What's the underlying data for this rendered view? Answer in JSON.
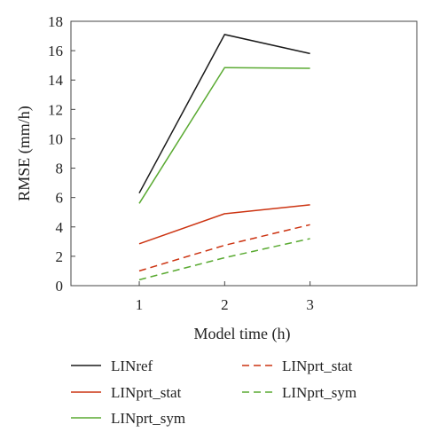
{
  "chart_data": {
    "type": "line",
    "title": "",
    "xlabel": "Model time (h)",
    "ylabel": "RMSE (mm/h)",
    "x": [
      1,
      2,
      3
    ],
    "xlim": [
      0.2,
      4.25
    ],
    "ylim": [
      0,
      18
    ],
    "xticks": [
      "1",
      "2",
      "3"
    ],
    "yticks": [
      "0",
      "2",
      "4",
      "6",
      "8",
      "10",
      "12",
      "14",
      "16",
      "18"
    ],
    "grid": false,
    "legend_position": "bottom",
    "series": [
      {
        "name": "LINref",
        "values": [
          6.3,
          17.1,
          15.8
        ],
        "color": "#1a1a1a",
        "dash": "solid"
      },
      {
        "name": "LINprt_stat",
        "values": [
          2.85,
          4.9,
          5.5
        ],
        "color": "#cc3311",
        "dash": "solid"
      },
      {
        "name": "LINprt_sym",
        "values": [
          5.6,
          14.85,
          14.8
        ],
        "color": "#5aaa32",
        "dash": "solid"
      },
      {
        "name": "LINprt_stat",
        "values": [
          1.0,
          2.75,
          4.15
        ],
        "color": "#cc3311",
        "dash": "dashed"
      },
      {
        "name": "LINprt_sym",
        "values": [
          0.4,
          1.9,
          3.2
        ],
        "color": "#5aaa32",
        "dash": "dashed"
      }
    ]
  }
}
